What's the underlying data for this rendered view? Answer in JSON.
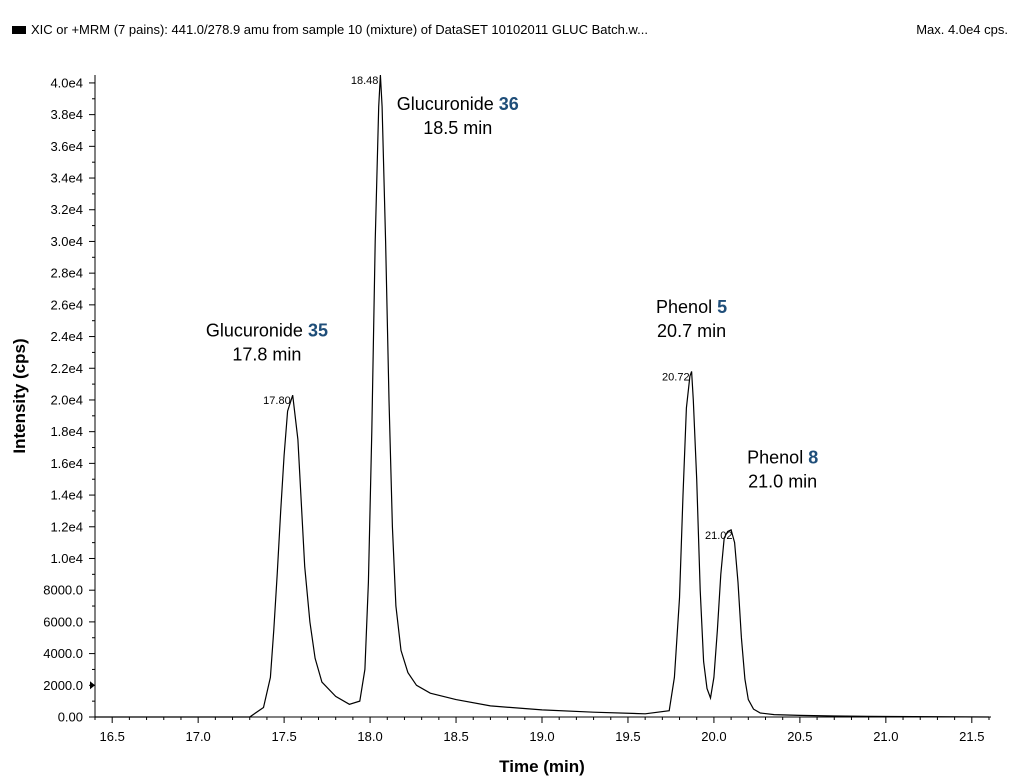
{
  "header": {
    "title": "XIC or +MRM (7 pains): 441.0/278.9 amu from sample 10 (mixture) of DataSET 10102011 GLUC Batch.w...",
    "max_label": "Max. 4.0e4 cps."
  },
  "colors": {
    "trace": "#000000",
    "highlight": "#1f4e79"
  },
  "chart_data": {
    "type": "line",
    "xlabel": "Time (min)",
    "ylabel": "Intensity (cps)",
    "xlim": [
      16.4,
      21.6
    ],
    "ylim": [
      0,
      40500
    ],
    "grid": false,
    "xticks": [
      16.5,
      17.0,
      17.5,
      18.0,
      18.5,
      19.0,
      19.5,
      20.0,
      20.5,
      21.0,
      21.5
    ],
    "xtick_labels": [
      "16.5",
      "17.0",
      "17.5",
      "18.0",
      "18.5",
      "19.0",
      "19.5",
      "20.0",
      "20.5",
      "21.0",
      "21.5"
    ],
    "yticks": [
      0,
      2000,
      4000,
      6000,
      8000,
      10000,
      12000,
      14000,
      16000,
      18000,
      20000,
      22000,
      24000,
      26000,
      28000,
      30000,
      32000,
      34000,
      36000,
      38000,
      40000
    ],
    "ytick_labels": [
      "0.00",
      "2000.0",
      "4000.0",
      "6000.0",
      "8000.0",
      "1.0e4",
      "1.2e4",
      "1.4e4",
      "1.6e4",
      "1.8e4",
      "2.0e4",
      "2.2e4",
      "2.4e4",
      "2.6e4",
      "2.8e4",
      "3.0e4",
      "3.2e4",
      "3.4e4",
      "3.6e4",
      "3.8e4",
      "4.0e4"
    ],
    "peaks": [
      {
        "rt_label": "17.80",
        "x": 17.55,
        "y": 20300
      },
      {
        "rt_label": "18.48",
        "x": 18.06,
        "y": 40500
      },
      {
        "rt_label": "20.72",
        "x": 19.87,
        "y": 21800
      },
      {
        "rt_label": "21.02",
        "x": 20.12,
        "y": 11800
      }
    ],
    "annotations": [
      {
        "name": "Glucuronide",
        "number": "35",
        "time": "17.8 min",
        "x": 17.4,
        "y": 24000
      },
      {
        "name": "Glucuronide",
        "number": "36",
        "time": "18.5 min",
        "x": 18.51,
        "y": 38300
      },
      {
        "name": "Phenol",
        "number": "5",
        "time": "20.7 min",
        "x": 19.87,
        "y": 25500
      },
      {
        "name": "Phenol",
        "number": "8",
        "time": "21.0 min",
        "x": 20.4,
        "y": 16000
      }
    ],
    "series": [
      {
        "x": [
          16.4,
          17.3,
          17.38,
          17.42,
          17.44,
          17.46,
          17.48,
          17.5,
          17.52,
          17.55,
          17.58,
          17.6,
          17.62,
          17.65,
          17.68,
          17.72,
          17.8,
          17.88,
          17.94,
          17.97,
          17.99,
          18.01,
          18.03,
          18.05,
          18.06,
          18.07,
          18.09,
          18.11,
          18.13,
          18.15,
          18.18,
          18.22,
          18.27,
          18.35,
          18.5,
          18.7,
          19.0,
          19.3,
          19.6,
          19.74,
          19.77,
          19.8,
          19.82,
          19.84,
          19.86,
          19.87,
          19.88,
          19.9,
          19.92,
          19.94,
          19.96,
          19.98,
          20.0,
          20.02,
          20.04,
          20.06,
          20.08,
          20.1,
          20.12,
          20.14,
          20.16,
          20.18,
          20.2,
          20.23,
          20.27,
          20.35,
          20.5,
          20.7,
          20.9,
          21.6
        ],
        "y": [
          0,
          0,
          600,
          2500,
          5500,
          9000,
          13000,
          16500,
          19300,
          20300,
          17500,
          13500,
          9500,
          6000,
          3700,
          2200,
          1300,
          800,
          1000,
          3000,
          8500,
          18000,
          30000,
          38500,
          40500,
          38500,
          30000,
          20000,
          12000,
          7000,
          4200,
          2800,
          2000,
          1500,
          1100,
          700,
          450,
          300,
          200,
          400,
          2500,
          7500,
          14000,
          19500,
          21500,
          21800,
          20000,
          15000,
          8000,
          3500,
          1800,
          1200,
          2500,
          5500,
          9000,
          11300,
          11700,
          11800,
          11000,
          8500,
          5000,
          2400,
          1100,
          500,
          250,
          150,
          100,
          60,
          40,
          0
        ]
      }
    ]
  }
}
